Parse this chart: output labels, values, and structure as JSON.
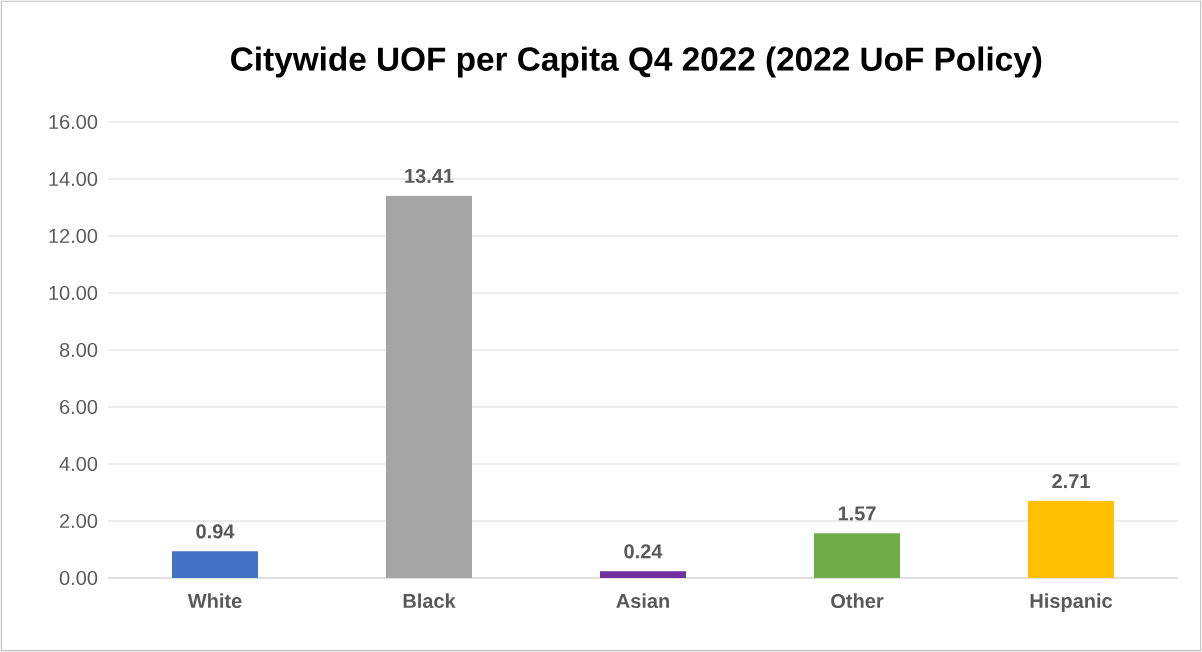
{
  "chart_data": {
    "type": "bar",
    "title": "Citywide UOF per Capita Q4 2022 (2022 UoF Policy)",
    "categories": [
      "White",
      "Black",
      "Asian",
      "Other",
      "Hispanic"
    ],
    "values": [
      0.94,
      13.41,
      0.24,
      1.57,
      2.71
    ],
    "colors": [
      "#4472c4",
      "#a5a5a5",
      "#7030a0",
      "#70ad47",
      "#ffc000"
    ],
    "data_labels": true,
    "ylim": [
      0,
      16
    ],
    "yticks": [
      {
        "value": 0,
        "label": "0.00"
      },
      {
        "value": 2,
        "label": "2.00"
      },
      {
        "value": 4,
        "label": "4.00"
      },
      {
        "value": 6,
        "label": "6.00"
      },
      {
        "value": 8,
        "label": "8.00"
      },
      {
        "value": 10,
        "label": "10.00"
      },
      {
        "value": 12,
        "label": "12.00"
      },
      {
        "value": 14,
        "label": "14.00"
      },
      {
        "value": 16,
        "label": "16.00"
      }
    ],
    "grid": "y"
  }
}
